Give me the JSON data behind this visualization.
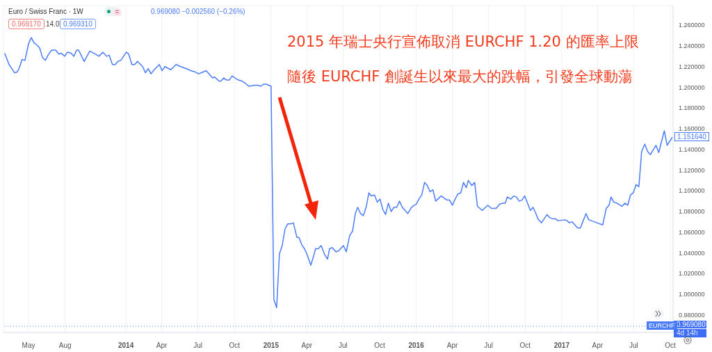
{
  "chart_data": {
    "type": "line",
    "title": "Euro / Swiss Franc · 1W",
    "annotations": [
      "0.969080 −0.002560 (−0.26%)",
      "0.969170",
      "14.0",
      "0.969310",
      "2015 年瑞士央行宣佈取消 EURCHF 1.20 的匯率上限",
      "隨後 EURCHF 創誕生以來最大的跌幅，引發全球動蕩",
      {
        "text": "1.151640",
        "x": "2017-10-06",
        "y": 1.1516
      },
      "0.969080",
      "4d 14h"
    ],
    "x": [
      "2013-03-02",
      "2013-03-13",
      "2013-03-27",
      "2013-04-03",
      "2013-04-08",
      "2013-04-15",
      "2013-04-22",
      "2013-05-01",
      "2013-05-08",
      "2013-05-15",
      "2013-05-22",
      "2013-05-29",
      "2013-06-05",
      "2013-06-12",
      "2013-06-19",
      "2013-06-28",
      "2013-07-08",
      "2013-07-17",
      "2013-07-22",
      "2013-07-31",
      "2013-08-07",
      "2013-08-16",
      "2013-08-23",
      "2013-08-30",
      "2013-09-04",
      "2013-09-18",
      "2013-10-02",
      "2013-10-12",
      "2013-10-25",
      "2013-11-04",
      "2013-11-13",
      "2013-11-20",
      "2013-11-28",
      "2013-12-05",
      "2013-12-12",
      "2013-12-19",
      "2014-01-02",
      "2014-01-08",
      "2014-01-16",
      "2014-01-23",
      "2014-01-30",
      "2014-02-12",
      "2014-02-19",
      "2014-02-26",
      "2014-03-05",
      "2014-03-13",
      "2014-03-26",
      "2014-04-02",
      "2014-04-09",
      "2014-04-24",
      "2014-05-07",
      "2014-05-19",
      "2014-06-02",
      "2014-06-14",
      "2014-06-23",
      "2014-07-03",
      "2014-07-15",
      "2014-07-22",
      "2014-08-07",
      "2014-08-12",
      "2014-08-23",
      "2014-08-28",
      "2014-09-04",
      "2014-09-11",
      "2014-09-18",
      "2014-09-25",
      "2014-10-02",
      "2014-10-11",
      "2014-10-20",
      "2014-10-28",
      "2014-11-06",
      "2014-11-22",
      "2014-11-29",
      "2014-12-06",
      "2014-12-13",
      "2014-12-20",
      "2015-01-01",
      "2015-01-08",
      "2015-01-15",
      "2015-01-22",
      "2015-01-29",
      "2015-02-05",
      "2015-02-12",
      "2015-02-19",
      "2015-02-26",
      "2015-03-07",
      "2015-03-12",
      "2015-03-19",
      "2015-03-26",
      "2015-04-02",
      "2015-04-11",
      "2015-04-18",
      "2015-04-23",
      "2015-04-30",
      "2015-05-07",
      "2015-05-16",
      "2015-05-23",
      "2015-05-28",
      "2015-06-04",
      "2015-06-13",
      "2015-06-20",
      "2015-07-02",
      "2015-07-09",
      "2015-07-18",
      "2015-07-25",
      "2015-08-01",
      "2015-08-07",
      "2015-08-14",
      "2015-08-21",
      "2015-08-28",
      "2015-09-04",
      "2015-09-10",
      "2015-09-18",
      "2015-09-25",
      "2015-10-02",
      "2015-10-09",
      "2015-10-16",
      "2015-10-23",
      "2015-10-30",
      "2015-11-06",
      "2015-11-13",
      "2015-11-20",
      "2015-11-27",
      "2015-12-11",
      "2015-12-20",
      "2015-12-27",
      "2016-01-01",
      "2016-01-08",
      "2016-01-15",
      "2016-01-22",
      "2016-01-29",
      "2016-02-05",
      "2016-02-12",
      "2016-02-19",
      "2016-03-04",
      "2016-03-18",
      "2016-03-25",
      "2016-04-01",
      "2016-04-08",
      "2016-04-15",
      "2016-04-22",
      "2016-04-29",
      "2016-05-06",
      "2016-05-11",
      "2016-05-20",
      "2016-05-27",
      "2016-06-03",
      "2016-06-15",
      "2016-06-29",
      "2016-07-08",
      "2016-07-20",
      "2016-07-29",
      "2016-08-05",
      "2016-08-12",
      "2016-08-17",
      "2016-08-26",
      "2016-09-02",
      "2016-09-09",
      "2016-09-16",
      "2016-09-23",
      "2016-09-30",
      "2016-10-07",
      "2016-10-14",
      "2016-10-21",
      "2016-10-28",
      "2016-11-02",
      "2016-11-11",
      "2016-11-25",
      "2016-12-02",
      "2016-12-09",
      "2016-12-16",
      "2016-12-23",
      "2017-01-08",
      "2017-01-15",
      "2017-01-20",
      "2017-01-27",
      "2017-02-10",
      "2017-02-17",
      "2017-02-24",
      "2017-03-03",
      "2017-03-10",
      "2017-03-24",
      "2017-03-31",
      "2017-04-14",
      "2017-04-23",
      "2017-04-30",
      "2017-05-05",
      "2017-05-12",
      "2017-05-20",
      "2017-06-02",
      "2017-06-09",
      "2017-06-16",
      "2017-06-23",
      "2017-06-30",
      "2017-07-07",
      "2017-07-14",
      "2017-07-21",
      "2017-07-29",
      "2017-08-05",
      "2017-08-12",
      "2017-08-26",
      "2017-09-02",
      "2017-09-16",
      "2017-09-23",
      "2017-10-06"
    ],
    "series": [
      {
        "name": "EURCHF",
        "color": "#4a7cf6",
        "values": [
          1.233,
          1.222,
          1.214,
          1.215,
          1.219,
          1.227,
          1.226,
          1.242,
          1.248,
          1.243,
          1.241,
          1.238,
          1.229,
          1.226,
          1.231,
          1.236,
          1.236,
          1.232,
          1.233,
          1.23,
          1.234,
          1.233,
          1.23,
          1.236,
          1.236,
          1.225,
          1.235,
          1.233,
          1.23,
          1.234,
          1.23,
          1.231,
          1.222,
          1.222,
          1.225,
          1.226,
          1.234,
          1.232,
          1.222,
          1.222,
          1.225,
          1.22,
          1.214,
          1.218,
          1.213,
          1.217,
          1.222,
          1.216,
          1.22,
          1.217,
          1.222,
          1.22,
          1.218,
          1.216,
          1.215,
          1.213,
          1.215,
          1.216,
          1.209,
          1.21,
          1.206,
          1.206,
          1.209,
          1.207,
          1.207,
          1.211,
          1.209,
          1.207,
          1.206,
          1.204,
          1.201,
          1.202,
          1.202,
          1.201,
          1.203,
          1.203,
          1.201,
          0.995,
          0.987,
          1.039,
          1.047,
          1.063,
          1.068,
          1.068,
          1.069,
          1.055,
          1.055,
          1.048,
          1.044,
          1.038,
          1.028,
          1.037,
          1.044,
          1.044,
          1.047,
          1.038,
          1.034,
          1.044,
          1.045,
          1.041,
          1.042,
          1.047,
          1.041,
          1.057,
          1.061,
          1.078,
          1.084,
          1.078,
          1.076,
          1.084,
          1.098,
          1.095,
          1.096,
          1.089,
          1.092,
          1.082,
          1.077,
          1.088,
          1.08,
          1.084,
          1.084,
          1.09,
          1.084,
          1.078,
          1.084,
          1.086,
          1.087,
          1.092,
          1.096,
          1.108,
          1.105,
          1.099,
          1.101,
          1.09,
          1.095,
          1.091,
          1.091,
          1.086,
          1.092,
          1.097,
          1.098,
          1.108,
          1.103,
          1.11,
          1.105,
          1.108,
          1.085,
          1.081,
          1.086,
          1.083,
          1.083,
          1.087,
          1.088,
          1.088,
          1.094,
          1.092,
          1.095,
          1.094,
          1.09,
          1.091,
          1.095,
          1.088,
          1.081,
          1.084,
          1.078,
          1.073,
          1.069,
          1.077,
          1.074,
          1.073,
          1.073,
          1.071,
          1.072,
          1.071,
          1.069,
          1.07,
          1.064,
          1.064,
          1.071,
          1.078,
          1.072,
          1.07,
          1.069,
          1.067,
          1.083,
          1.086,
          1.094,
          1.089,
          1.088,
          1.085,
          1.088,
          1.086,
          1.096,
          1.098,
          1.106,
          1.104,
          1.138,
          1.145,
          1.138,
          1.135,
          1.144,
          1.137,
          1.158,
          1.144,
          1.1516
        ]
      }
    ],
    "xlim": [
      "2013-02-27",
      "2017-10-08"
    ],
    "xticks": [
      {
        "value": "2013-05-01",
        "label": "May"
      },
      {
        "value": "2013-08-01",
        "label": "Aug"
      },
      {
        "value": "2014-01-01",
        "label": "2014"
      },
      {
        "value": "2014-04-01",
        "label": "Apr"
      },
      {
        "value": "2014-07-01",
        "label": "Jul"
      },
      {
        "value": "2014-10-01",
        "label": "Oct"
      },
      {
        "value": "2015-01-01",
        "label": "2015"
      },
      {
        "value": "2015-04-01",
        "label": "Apr"
      },
      {
        "value": "2015-07-01",
        "label": "Jul"
      },
      {
        "value": "2015-10-01",
        "label": "Oct"
      },
      {
        "value": "2016-01-01",
        "label": "2016"
      },
      {
        "value": "2016-04-01",
        "label": "Apr"
      },
      {
        "value": "2016-07-01",
        "label": "Jul"
      },
      {
        "value": "2016-10-01",
        "label": "Oct"
      },
      {
        "value": "2017-01-01",
        "label": "2017"
      },
      {
        "value": "2017-04-01",
        "label": "Apr"
      },
      {
        "value": "2017-07-01",
        "label": "Jul"
      },
      {
        "value": "2017-10-01",
        "label": "Oct"
      }
    ],
    "ylim": [
      0.963,
      1.279
    ],
    "yticks": [
      {
        "value": 0.98,
        "label": "0.980000"
      },
      {
        "value": 1.0,
        "label": "1.000000"
      },
      {
        "value": 1.02,
        "label": "1.020000"
      },
      {
        "value": 1.04,
        "label": "1.040000"
      },
      {
        "value": 1.06,
        "label": "1.060000"
      },
      {
        "value": 1.08,
        "label": "1.080000"
      },
      {
        "value": 1.1,
        "label": "1.100000"
      },
      {
        "value": 1.12,
        "label": "1.120000"
      },
      {
        "value": 1.14,
        "label": "1.140000"
      },
      {
        "value": 1.16,
        "label": "1.160000"
      },
      {
        "value": 1.18,
        "label": "1.180000"
      },
      {
        "value": 1.2,
        "label": "1.200000"
      },
      {
        "value": 1.22,
        "label": "1.220000"
      },
      {
        "value": 1.24,
        "label": "1.240000"
      },
      {
        "value": 1.26,
        "label": "1.260000"
      }
    ],
    "ref_lines": [
      {
        "axis": "y",
        "value": 0.96908,
        "color": "#4a7cf6",
        "line_style": "dotted"
      }
    ],
    "grid": true
  }
}
